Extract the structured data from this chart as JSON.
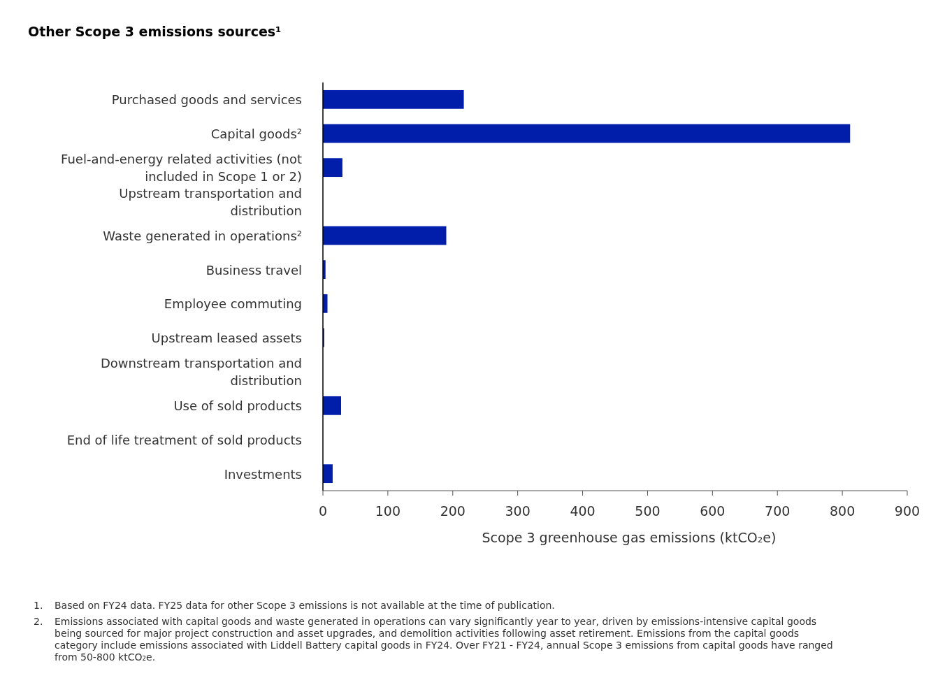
{
  "chart_data": {
    "type": "bar",
    "orientation": "horizontal",
    "title": "Other Scope 3 emissions sources¹",
    "categories": [
      "Purchased goods and services",
      "Capital goods²",
      "Fuel-and-energy related activities (not included in Scope 1 or 2)",
      "Upstream transportation and distribution",
      "Waste generated in operations²",
      "Business travel",
      "Employee commuting",
      "Upstream leased assets",
      "Downstream transportation and distribution",
      "Use of sold products",
      "End of life treatment of sold products",
      "Investments"
    ],
    "values": [
      217,
      812,
      30,
      0,
      190,
      4,
      7,
      2,
      0,
      28,
      0,
      15
    ],
    "color": "#001eaa",
    "xlim": [
      0,
      900
    ],
    "xticks": [
      0,
      100,
      200,
      300,
      400,
      500,
      600,
      700,
      800,
      900
    ],
    "xlabel": "Scope 3 greenhouse gas emissions (ktCO₂e)",
    "annotations": [
      "1.\tBased on FY24 data. FY25 data for other Scope 3 emissions is not available at the time of publication.",
      "2.\tEmissions associated with capital goods and waste generated in operations can vary significantly year to year, driven by emissions-intensive capital goods being sourced for major project construction and asset upgrades, and demolition activities following asset retirement. Emissions from the capital goods category include emissions associated with Liddell Battery capital goods in FY24. Over FY21 - FY24, annual Scope 3 emissions from capital goods have ranged from 50-800 ktCO₂e."
    ]
  }
}
